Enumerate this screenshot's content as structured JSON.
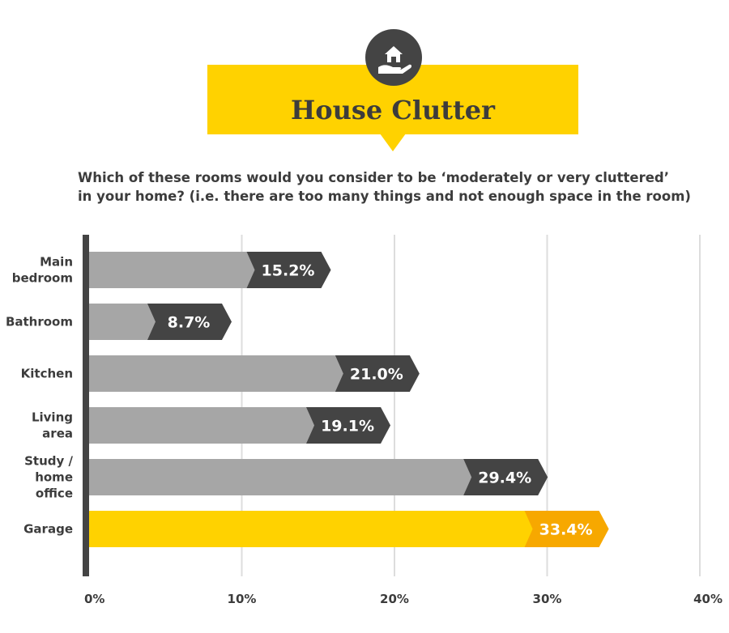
{
  "header": {
    "title": "House Clutter",
    "icon": "house-in-hand-icon",
    "question_lines": [
      "Which of these rooms would you consider to be ‘moderately or very cluttered’",
      "in your home? (i.e. there are too many things and not enough space in the room)"
    ]
  },
  "colors": {
    "banner": "#ffd200",
    "bar_default": "#a6a6a6",
    "label_default": "#444444",
    "bar_highlight": "#ffd200",
    "label_highlight": "#f7a800",
    "axis": "#444444",
    "grid": "#dddddd"
  },
  "chart_data": {
    "type": "bar",
    "orientation": "horizontal",
    "categories": [
      [
        "Main",
        "bedroom"
      ],
      [
        "Bathroom"
      ],
      [
        "Kitchen"
      ],
      [
        "Living",
        "area"
      ],
      [
        "Study /",
        "home",
        "office"
      ],
      [
        "Garage"
      ]
    ],
    "values": [
      15.2,
      8.7,
      21.0,
      19.1,
      29.4,
      33.4
    ],
    "value_labels": [
      "15.2%",
      "8.7%",
      "21.0%",
      "19.1%",
      "29.4%",
      "33.4%"
    ],
    "highlight_index": 5,
    "xlim": [
      0,
      40
    ],
    "xticks": [
      0,
      10,
      20,
      30,
      40
    ],
    "xtick_labels": [
      "0%",
      "10%",
      "20%",
      "30%",
      "40%"
    ],
    "grid": true
  }
}
